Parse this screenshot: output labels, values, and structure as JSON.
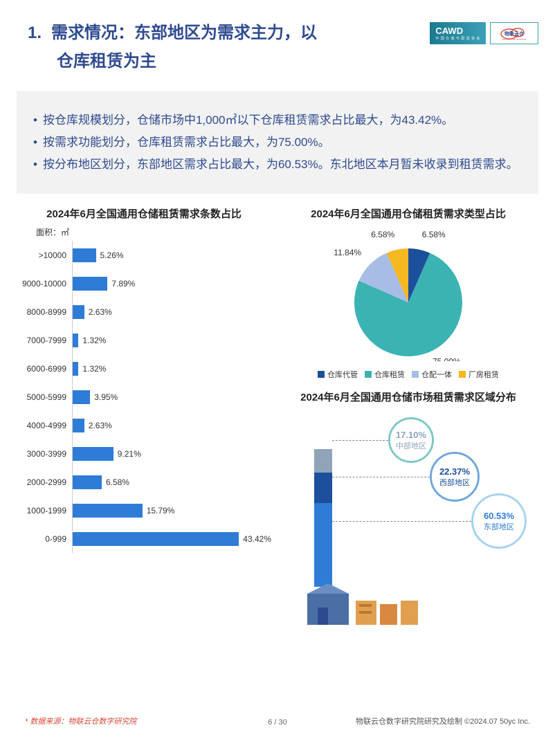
{
  "header": {
    "number": "1.",
    "title_line1": "需求情况：东部地区为需求主力，以",
    "title_line2": "仓库租赁为主",
    "logo_cawd": "CAWD",
    "logo_cawd_sub": "中 国 仓 储 与 配 送 协 会",
    "logo_cloud": "物联云仓"
  },
  "summary": {
    "items": [
      "按仓库规模划分，仓储市场中1,000㎡以下仓库租赁需求占比最大，为43.42%。",
      "按需求功能划分，仓库租赁需求占比最大，为75.00%。",
      "按分布地区划分，东部地区需求占比最大，为60.53%。东北地区本月暂未收录到租赁需求。"
    ],
    "text_color": "#2e4a8f",
    "bg_color": "#f2f2f2"
  },
  "bar_chart": {
    "type": "bar",
    "title": "2024年6月全国通用仓储租赁需求条数占比",
    "axis_label": "面积：㎡",
    "categories": [
      ">10000",
      "9000-10000",
      "8000-8999",
      "7000-7999",
      "6000-6999",
      "5000-5999",
      "4000-4999",
      "3000-3999",
      "2000-2999",
      "1000-1999",
      "0-999"
    ],
    "values": [
      5.26,
      7.89,
      2.63,
      1.32,
      1.32,
      3.95,
      2.63,
      9.21,
      6.58,
      15.79,
      43.42
    ],
    "value_labels": [
      "5.26%",
      "7.89%",
      "2.63%",
      "1.32%",
      "1.32%",
      "3.95%",
      "2.63%",
      "9.21%",
      "6.58%",
      "15.79%",
      "43.42%"
    ],
    "bar_color": "#2e7cd6",
    "max_scale": 45,
    "label_fontsize": 12
  },
  "pie_chart": {
    "type": "pie",
    "title": "2024年6月全国通用仓储租赁需求类型占比",
    "slices": [
      {
        "label": "仓库代管",
        "value": 6.58,
        "color": "#1c4f9c",
        "pct": "6.58%"
      },
      {
        "label": "仓库租赁",
        "value": 75.0,
        "color": "#3bb3b3",
        "pct": "75.00%"
      },
      {
        "label": "仓配一体",
        "value": 11.84,
        "color": "#a7bde6",
        "pct": "11.84%"
      },
      {
        "label": "厂房租赁",
        "value": 6.58,
        "color": "#f5b821",
        "pct": "6.58%"
      }
    ],
    "radius": 78
  },
  "region_chart": {
    "type": "stacked-bar-bubble",
    "title": "2024年6月全国通用仓储市场租赁需求区域分布",
    "segments": [
      {
        "label": "东部地区",
        "value": 60.53,
        "color": "#2e7cd6",
        "pct": "60.53%"
      },
      {
        "label": "西部地区",
        "value": 22.37,
        "color": "#1c4f9c",
        "pct": "22.37%"
      },
      {
        "label": "中部地区",
        "value": 17.1,
        "color": "#8fa4b8",
        "pct": "17.10%"
      }
    ],
    "bubble_border_colors": [
      "#7ec9c5",
      "#6fa8dc",
      "#a7d3f0"
    ]
  },
  "source": "* 数据来源：物联云仓数字研究院",
  "footer": "物联云仓数字研究院研究及绘制   ©2024.07 50yc Inc.",
  "page": "6 / 30",
  "colors": {
    "title": "#2e4a8f",
    "accent_teal": "#3bb3b3",
    "accent_blue": "#2e7cd6"
  }
}
